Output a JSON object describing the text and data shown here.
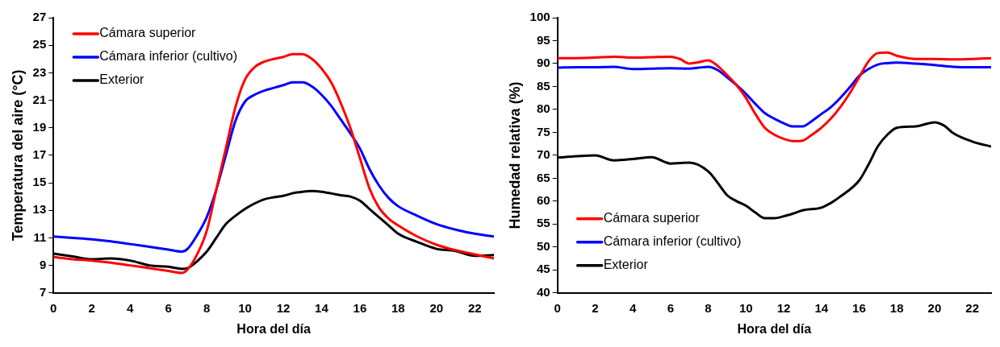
{
  "chart_data": [
    {
      "type": "line",
      "xlabel": "Hora del día",
      "ylabel": "Temperatura del aire (°C)",
      "xlim": [
        0,
        23
      ],
      "xticks": [
        0,
        2,
        4,
        6,
        8,
        10,
        12,
        14,
        16,
        18,
        20,
        22
      ],
      "ylim": [
        7,
        27
      ],
      "yticks": [
        7,
        9,
        11,
        13,
        15,
        17,
        19,
        21,
        23,
        25,
        27
      ],
      "legend": "top left",
      "marker": "none",
      "series": [
        {
          "name": "Cámara superior",
          "color": "#ff0000",
          "x": [
            0,
            1,
            2,
            3,
            4,
            5,
            6,
            6.7,
            7,
            7.5,
            8,
            8.5,
            9,
            9.5,
            10,
            10.5,
            11,
            11.5,
            12,
            12.5,
            13,
            13.5,
            14,
            14.5,
            15,
            15.5,
            16,
            16.5,
            17,
            17.5,
            18,
            19,
            20,
            21,
            22,
            23
          ],
          "values": [
            9.6,
            9.45,
            9.35,
            9.2,
            9.0,
            8.8,
            8.6,
            8.45,
            8.7,
            9.8,
            11.5,
            14.5,
            17.5,
            20.5,
            22.5,
            23.4,
            23.8,
            24.0,
            24.15,
            24.35,
            24.35,
            24.0,
            23.3,
            22.3,
            20.8,
            19.0,
            16.8,
            14.6,
            13.2,
            12.4,
            11.9,
            11.1,
            10.5,
            10.1,
            9.8,
            9.5
          ]
        },
        {
          "name": "Cámara inferior (cultivo)",
          "color": "#0000ff",
          "x": [
            0,
            1,
            2,
            3,
            4,
            5,
            6,
            6.7,
            7,
            7.5,
            8,
            8.5,
            9,
            9.5,
            10,
            10.5,
            11,
            11.5,
            12,
            12.5,
            13,
            13.5,
            14,
            14.5,
            15,
            15.5,
            16,
            16.5,
            17,
            17.5,
            18,
            19,
            20,
            21,
            22,
            23
          ],
          "values": [
            11.1,
            11.0,
            10.9,
            10.75,
            10.55,
            10.35,
            10.15,
            10.0,
            10.2,
            11.2,
            12.5,
            14.5,
            17.0,
            19.5,
            20.9,
            21.4,
            21.7,
            21.9,
            22.1,
            22.3,
            22.3,
            22.0,
            21.4,
            20.6,
            19.6,
            18.6,
            17.5,
            16.0,
            14.8,
            13.9,
            13.3,
            12.6,
            12.0,
            11.6,
            11.3,
            11.1
          ]
        },
        {
          "name": "Exterior",
          "color": "#000000",
          "x": [
            0,
            1,
            2,
            3,
            4,
            5,
            6,
            6.7,
            7,
            7.5,
            8,
            8.5,
            9,
            9.5,
            10,
            10.5,
            11,
            11.5,
            12,
            12.5,
            13,
            13.5,
            14,
            15,
            15.5,
            16,
            16.5,
            17,
            17.5,
            18,
            19,
            20,
            21,
            22,
            23
          ],
          "values": [
            9.85,
            9.65,
            9.45,
            9.5,
            9.35,
            9.0,
            8.9,
            8.75,
            8.8,
            9.3,
            10.0,
            11.0,
            12.0,
            12.6,
            13.1,
            13.5,
            13.8,
            13.95,
            14.05,
            14.25,
            14.35,
            14.4,
            14.35,
            14.1,
            14.0,
            13.7,
            13.1,
            12.5,
            11.9,
            11.3,
            10.7,
            10.2,
            10.05,
            9.7,
            9.75
          ]
        }
      ]
    },
    {
      "type": "line",
      "xlabel": "Hora del día",
      "ylabel": "Humedad relativa (%)",
      "xlim": [
        0,
        23
      ],
      "xticks": [
        0,
        2,
        4,
        6,
        8,
        10,
        12,
        14,
        16,
        18,
        20,
        22
      ],
      "ylim": [
        40,
        100
      ],
      "yticks": [
        40,
        45,
        50,
        55,
        60,
        65,
        70,
        75,
        80,
        85,
        90,
        95,
        100
      ],
      "legend": "bottom left",
      "marker": "none",
      "series": [
        {
          "name": "Cámara superior",
          "color": "#ff0000",
          "x": [
            0,
            1,
            2,
            3,
            4,
            5,
            6,
            6.5,
            7,
            7.5,
            8,
            8.5,
            9,
            9.5,
            10,
            10.5,
            11,
            11.5,
            12,
            12.5,
            13,
            13.5,
            14,
            14.5,
            15,
            15.5,
            16,
            16.5,
            17,
            17.5,
            18,
            19,
            20,
            21,
            22,
            23
          ],
          "values": [
            91.2,
            91.2,
            91.3,
            91.5,
            91.3,
            91.4,
            91.5,
            91.0,
            90.0,
            90.3,
            90.7,
            89.5,
            87.5,
            85.3,
            82.5,
            79.0,
            76.0,
            74.5,
            73.6,
            73.1,
            73.2,
            74.5,
            76.0,
            78.0,
            80.5,
            83.5,
            87.0,
            90.5,
            92.3,
            92.4,
            91.7,
            91.0,
            91.0,
            90.9,
            91.0,
            91.2
          ]
        },
        {
          "name": "Cámara inferior (cultivo)",
          "color": "#0000ff",
          "x": [
            0,
            1,
            2,
            3,
            4,
            5,
            6,
            7,
            7.5,
            8,
            8.5,
            9,
            9.5,
            10,
            10.5,
            11,
            11.5,
            12,
            12.5,
            13,
            13.5,
            14,
            14.5,
            15,
            15.5,
            16,
            16.5,
            17,
            17.5,
            18,
            19,
            20,
            21,
            22,
            23
          ],
          "values": [
            89.1,
            89.2,
            89.2,
            89.3,
            88.8,
            88.9,
            89.0,
            88.9,
            89.1,
            89.3,
            88.6,
            87.0,
            85.3,
            83.4,
            81.2,
            79.2,
            78.0,
            77.0,
            76.3,
            76.3,
            77.5,
            79.0,
            80.5,
            82.5,
            84.8,
            87.3,
            88.8,
            89.8,
            90.1,
            90.2,
            90.0,
            89.7,
            89.3,
            89.2,
            89.2
          ]
        },
        {
          "name": "Exterior",
          "color": "#000000",
          "x": [
            0,
            1,
            2,
            3,
            4,
            5,
            6,
            6.5,
            7,
            8,
            8.5,
            9,
            9.5,
            10,
            10.5,
            11,
            11.5,
            12,
            12.5,
            13,
            14,
            14.5,
            15,
            16,
            16.5,
            17,
            17.5,
            18,
            19,
            20,
            20.5,
            21,
            22,
            23
          ],
          "values": [
            69.5,
            69.8,
            70.0,
            68.9,
            69.2,
            69.6,
            68.2,
            68.3,
            68.4,
            66.5,
            64.0,
            61.3,
            60.0,
            59.0,
            57.5,
            56.3,
            56.3,
            56.7,
            57.3,
            58.0,
            58.6,
            59.6,
            61.0,
            64.5,
            68.0,
            72.0,
            74.5,
            76.0,
            76.3,
            77.2,
            76.5,
            74.8,
            73.0,
            71.9
          ]
        }
      ]
    }
  ]
}
